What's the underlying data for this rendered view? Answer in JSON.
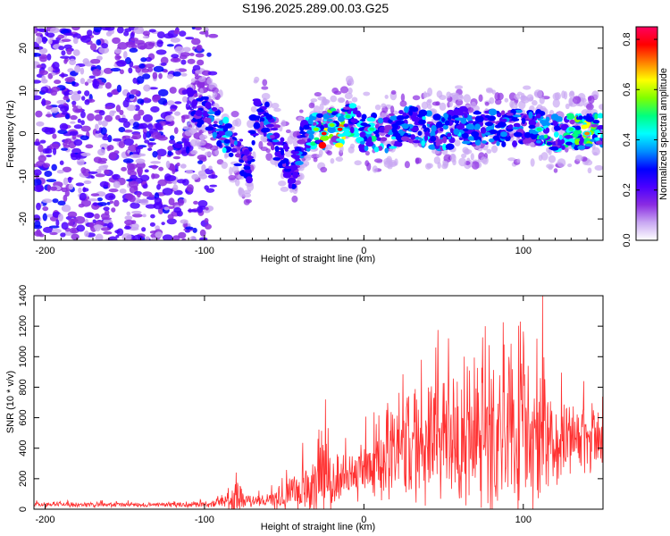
{
  "title": "S196.2025.289.00.03.G25",
  "chart_data": [
    {
      "type": "heatmap",
      "name": "spectrogram",
      "xlabel": "Height of straight line (km)",
      "ylabel": "Frequency (Hz)",
      "xlim": [
        -207,
        150
      ],
      "ylim": [
        -25,
        25
      ],
      "xticks": [
        -200,
        -100,
        0,
        100
      ],
      "xtick_labels": [
        "-200",
        "-100",
        "0",
        "100"
      ],
      "yticks": [
        20,
        10,
        0,
        -10,
        -20
      ],
      "ytick_labels": [
        "20",
        "10",
        "0",
        "-10",
        "-20"
      ],
      "colorbar": {
        "label": "Normalized spectral amplitude",
        "range": [
          0,
          0.85
        ],
        "ticks": [
          0.0,
          0.2,
          0.4,
          0.6,
          0.8
        ],
        "tick_labels": [
          "0.0",
          "0.2",
          "0.4",
          "0.6",
          "0.8"
        ],
        "colors": [
          "#ffffff",
          "#c9a8f2",
          "#8a2be2",
          "#4b00ff",
          "#0000ff",
          "#0090ff",
          "#00ffff",
          "#00ff80",
          "#80ff00",
          "#ffff00",
          "#ff8000",
          "#ff0000",
          "#ff0060"
        ]
      },
      "track": {
        "x": [
          -110,
          -100,
          -90,
          -80,
          -72,
          -68,
          -60,
          -55,
          -50,
          -45,
          -40,
          -35,
          -30,
          -25,
          -20,
          -15,
          -10,
          -5,
          0,
          5,
          10,
          15,
          20,
          30,
          40,
          50,
          60,
          70,
          80,
          90,
          100,
          110,
          120,
          130,
          140,
          150
        ],
        "f": [
          7,
          5,
          1,
          -3,
          -8,
          5,
          3,
          -2,
          -6,
          -10,
          -2,
          0,
          1,
          0,
          2,
          1,
          4,
          2,
          0,
          1,
          -1,
          0,
          1,
          2,
          1,
          0,
          2,
          1,
          2,
          1,
          2,
          1,
          0,
          1,
          0,
          1
        ],
        "amp": [
          0.25,
          0.35,
          0.4,
          0.45,
          0.3,
          0.3,
          0.35,
          0.35,
          0.3,
          0.25,
          0.35,
          0.4,
          0.6,
          0.8,
          0.55,
          0.75,
          0.5,
          0.45,
          0.45,
          0.5,
          0.45,
          0.4,
          0.4,
          0.4,
          0.4,
          0.4,
          0.4,
          0.35,
          0.4,
          0.35,
          0.4,
          0.5,
          0.45,
          0.5,
          0.7,
          0.45
        ]
      }
    },
    {
      "type": "line",
      "name": "snr",
      "xlabel": "Height of straight line (km)",
      "ylabel": "SNR (10 * v/v)",
      "color": "#ff3030",
      "xlim": [
        -207,
        150
      ],
      "ylim": [
        0,
        1400
      ],
      "xticks": [
        -200,
        -100,
        0,
        100
      ],
      "xtick_labels": [
        "-200",
        "-100",
        "0",
        "100"
      ],
      "yticks": [
        0,
        200,
        400,
        600,
        800,
        1000,
        1200,
        1400
      ],
      "ytick_labels": [
        "0",
        "200",
        "400",
        "600",
        "800",
        "1000",
        "1200",
        "1400"
      ],
      "envelope": {
        "x": [
          -207,
          -120,
          -100,
          -90,
          -80,
          -75,
          -70,
          -60,
          -50,
          -40,
          -35,
          -30,
          -25,
          -20,
          -10,
          0,
          10,
          20,
          30,
          40,
          50,
          60,
          70,
          80,
          90,
          100,
          110,
          120,
          130,
          140,
          150
        ],
        "base": [
          30,
          30,
          30,
          40,
          70,
          60,
          50,
          60,
          80,
          120,
          160,
          200,
          250,
          150,
          220,
          260,
          320,
          380,
          420,
          460,
          480,
          470,
          460,
          470,
          460,
          470,
          460,
          470,
          480,
          470,
          480
        ],
        "spread": [
          20,
          20,
          25,
          40,
          140,
          60,
          40,
          60,
          120,
          200,
          280,
          350,
          300,
          180,
          200,
          240,
          300,
          380,
          420,
          480,
          520,
          520,
          550,
          560,
          580,
          560,
          520,
          380,
          300,
          260,
          200
        ]
      },
      "peaks": [
        {
          "x": 112,
          "y": 1400
        },
        {
          "x": 98,
          "y": 1230
        },
        {
          "x": 76,
          "y": 1200
        },
        {
          "x": 53,
          "y": 1120
        },
        {
          "x": 88,
          "y": 1080
        },
        {
          "x": 45,
          "y": 1060
        },
        {
          "x": 63,
          "y": 1000
        },
        {
          "x": 36,
          "y": 980
        },
        {
          "x": 103,
          "y": 940
        },
        {
          "x": 138,
          "y": 840
        },
        {
          "x": -24,
          "y": 720
        },
        {
          "x": 28,
          "y": 740
        },
        {
          "x": 18,
          "y": 620
        },
        {
          "x": -80,
          "y": 240
        }
      ]
    }
  ]
}
